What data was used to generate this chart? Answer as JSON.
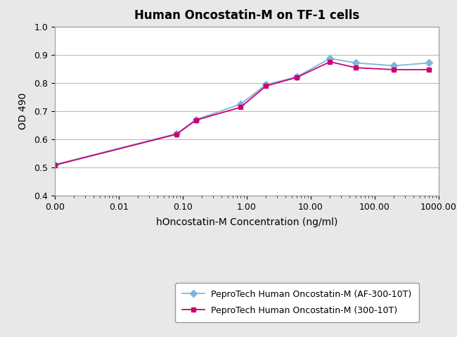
{
  "title": "Human Oncostatin-M on TF-1 cells",
  "xlabel": "hOncostatin-M Concentration (ng/ml)",
  "ylabel": "OD 490",
  "ylim": [
    0.4,
    1.0
  ],
  "yticks": [
    0.4,
    0.5,
    0.6,
    0.7,
    0.8,
    0.9,
    1.0
  ],
  "series": [
    {
      "label": "PeproTech Human Oncostatin-M (AF-300-10T)",
      "color": "#7EB6D9",
      "marker": "D",
      "markersize": 5,
      "x": [
        0.001,
        0.08,
        0.16,
        0.8,
        2.0,
        6.0,
        20.0,
        50.0,
        200.0,
        700.0
      ],
      "y": [
        0.51,
        0.62,
        0.67,
        0.725,
        0.795,
        0.822,
        0.888,
        0.872,
        0.862,
        0.872
      ]
    },
    {
      "label": "PeproTech Human Oncostatin-M (300-10T)",
      "color": "#CC0077",
      "marker": "s",
      "markersize": 5,
      "x": [
        0.001,
        0.08,
        0.16,
        0.8,
        2.0,
        6.0,
        20.0,
        50.0,
        200.0,
        700.0
      ],
      "y": [
        0.508,
        0.618,
        0.668,
        0.714,
        0.79,
        0.82,
        0.876,
        0.855,
        0.848,
        0.848
      ]
    }
  ],
  "background_color": "#e8e8e8",
  "plot_bg_color": "#ffffff",
  "grid_color": "#bbbbbb",
  "title_fontsize": 12,
  "axis_label_fontsize": 10,
  "tick_fontsize": 9,
  "xtick_positions": [
    0.001,
    0.01,
    0.1,
    1.0,
    10.0,
    100.0,
    1000.0
  ],
  "xtick_labels": [
    "0.00",
    "0.01",
    "0.10",
    "1.00",
    "10.00",
    "100.00",
    "1000.00"
  ]
}
